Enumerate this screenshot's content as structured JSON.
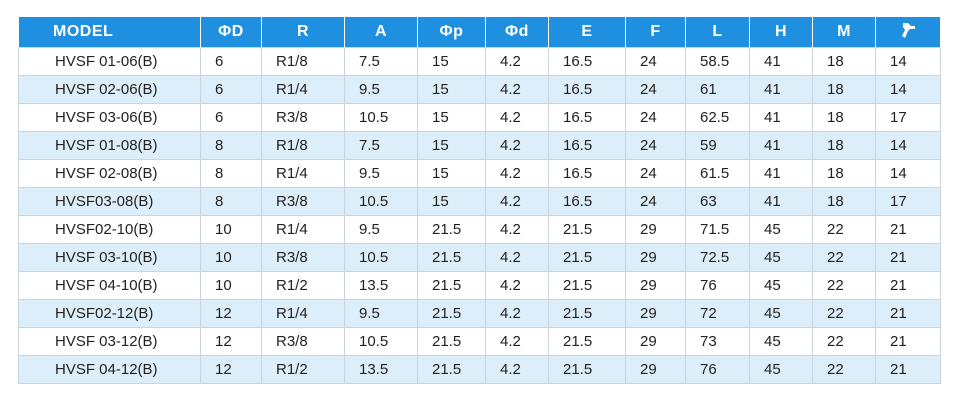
{
  "table": {
    "headers": [
      "MODEL",
      "ΦD",
      "R",
      "A",
      "Φp",
      "Φd",
      "E",
      "F",
      "L",
      "H",
      "M"
    ],
    "wrench_header_icon": "wrench-icon",
    "rows": [
      [
        "HVSF 01-06(B)",
        "6",
        "R1/8",
        "7.5",
        "15",
        "4.2",
        "16.5",
        "24",
        "58.5",
        "41",
        "18",
        "14"
      ],
      [
        "HVSF 02-06(B)",
        "6",
        "R1/4",
        "9.5",
        "15",
        "4.2",
        "16.5",
        "24",
        "61",
        "41",
        "18",
        "14"
      ],
      [
        "HVSF 03-06(B)",
        "6",
        "R3/8",
        "10.5",
        "15",
        "4.2",
        "16.5",
        "24",
        "62.5",
        "41",
        "18",
        "17"
      ],
      [
        "HVSF 01-08(B)",
        "8",
        "R1/8",
        "7.5",
        "15",
        "4.2",
        "16.5",
        "24",
        "59",
        "41",
        "18",
        "14"
      ],
      [
        "HVSF 02-08(B)",
        "8",
        "R1/4",
        "9.5",
        "15",
        "4.2",
        "16.5",
        "24",
        "61.5",
        "41",
        "18",
        "14"
      ],
      [
        "HVSF03-08(B)",
        "8",
        "R3/8",
        "10.5",
        "15",
        "4.2",
        "16.5",
        "24",
        "63",
        "41",
        "18",
        "17"
      ],
      [
        "HVSF02-10(B)",
        "10",
        "R1/4",
        "9.5",
        "21.5",
        "4.2",
        "21.5",
        "29",
        "71.5",
        "45",
        "22",
        "21"
      ],
      [
        "HVSF 03-10(B)",
        "10",
        "R3/8",
        "10.5",
        "21.5",
        "4.2",
        "21.5",
        "29",
        "72.5",
        "45",
        "22",
        "21"
      ],
      [
        "HVSF 04-10(B)",
        "10",
        "R1/2",
        "13.5",
        "21.5",
        "4.2",
        "21.5",
        "29",
        "76",
        "45",
        "22",
        "21"
      ],
      [
        "HVSF02-12(B)",
        "12",
        "R1/4",
        "9.5",
        "21.5",
        "4.2",
        "21.5",
        "29",
        "72",
        "45",
        "22",
        "21"
      ],
      [
        "HVSF 03-12(B)",
        "12",
        "R3/8",
        "10.5",
        "21.5",
        "4.2",
        "21.5",
        "29",
        "73",
        "45",
        "22",
        "21"
      ],
      [
        "HVSF 04-12(B)",
        "12",
        "R1/2",
        "13.5",
        "21.5",
        "4.2",
        "21.5",
        "29",
        "76",
        "45",
        "22",
        "21"
      ]
    ]
  },
  "colors": {
    "header_bg": "#1f8fe0",
    "header_text": "#ffffff",
    "alt_row_bg": "#ddeefb",
    "border": "#c9d4de"
  }
}
